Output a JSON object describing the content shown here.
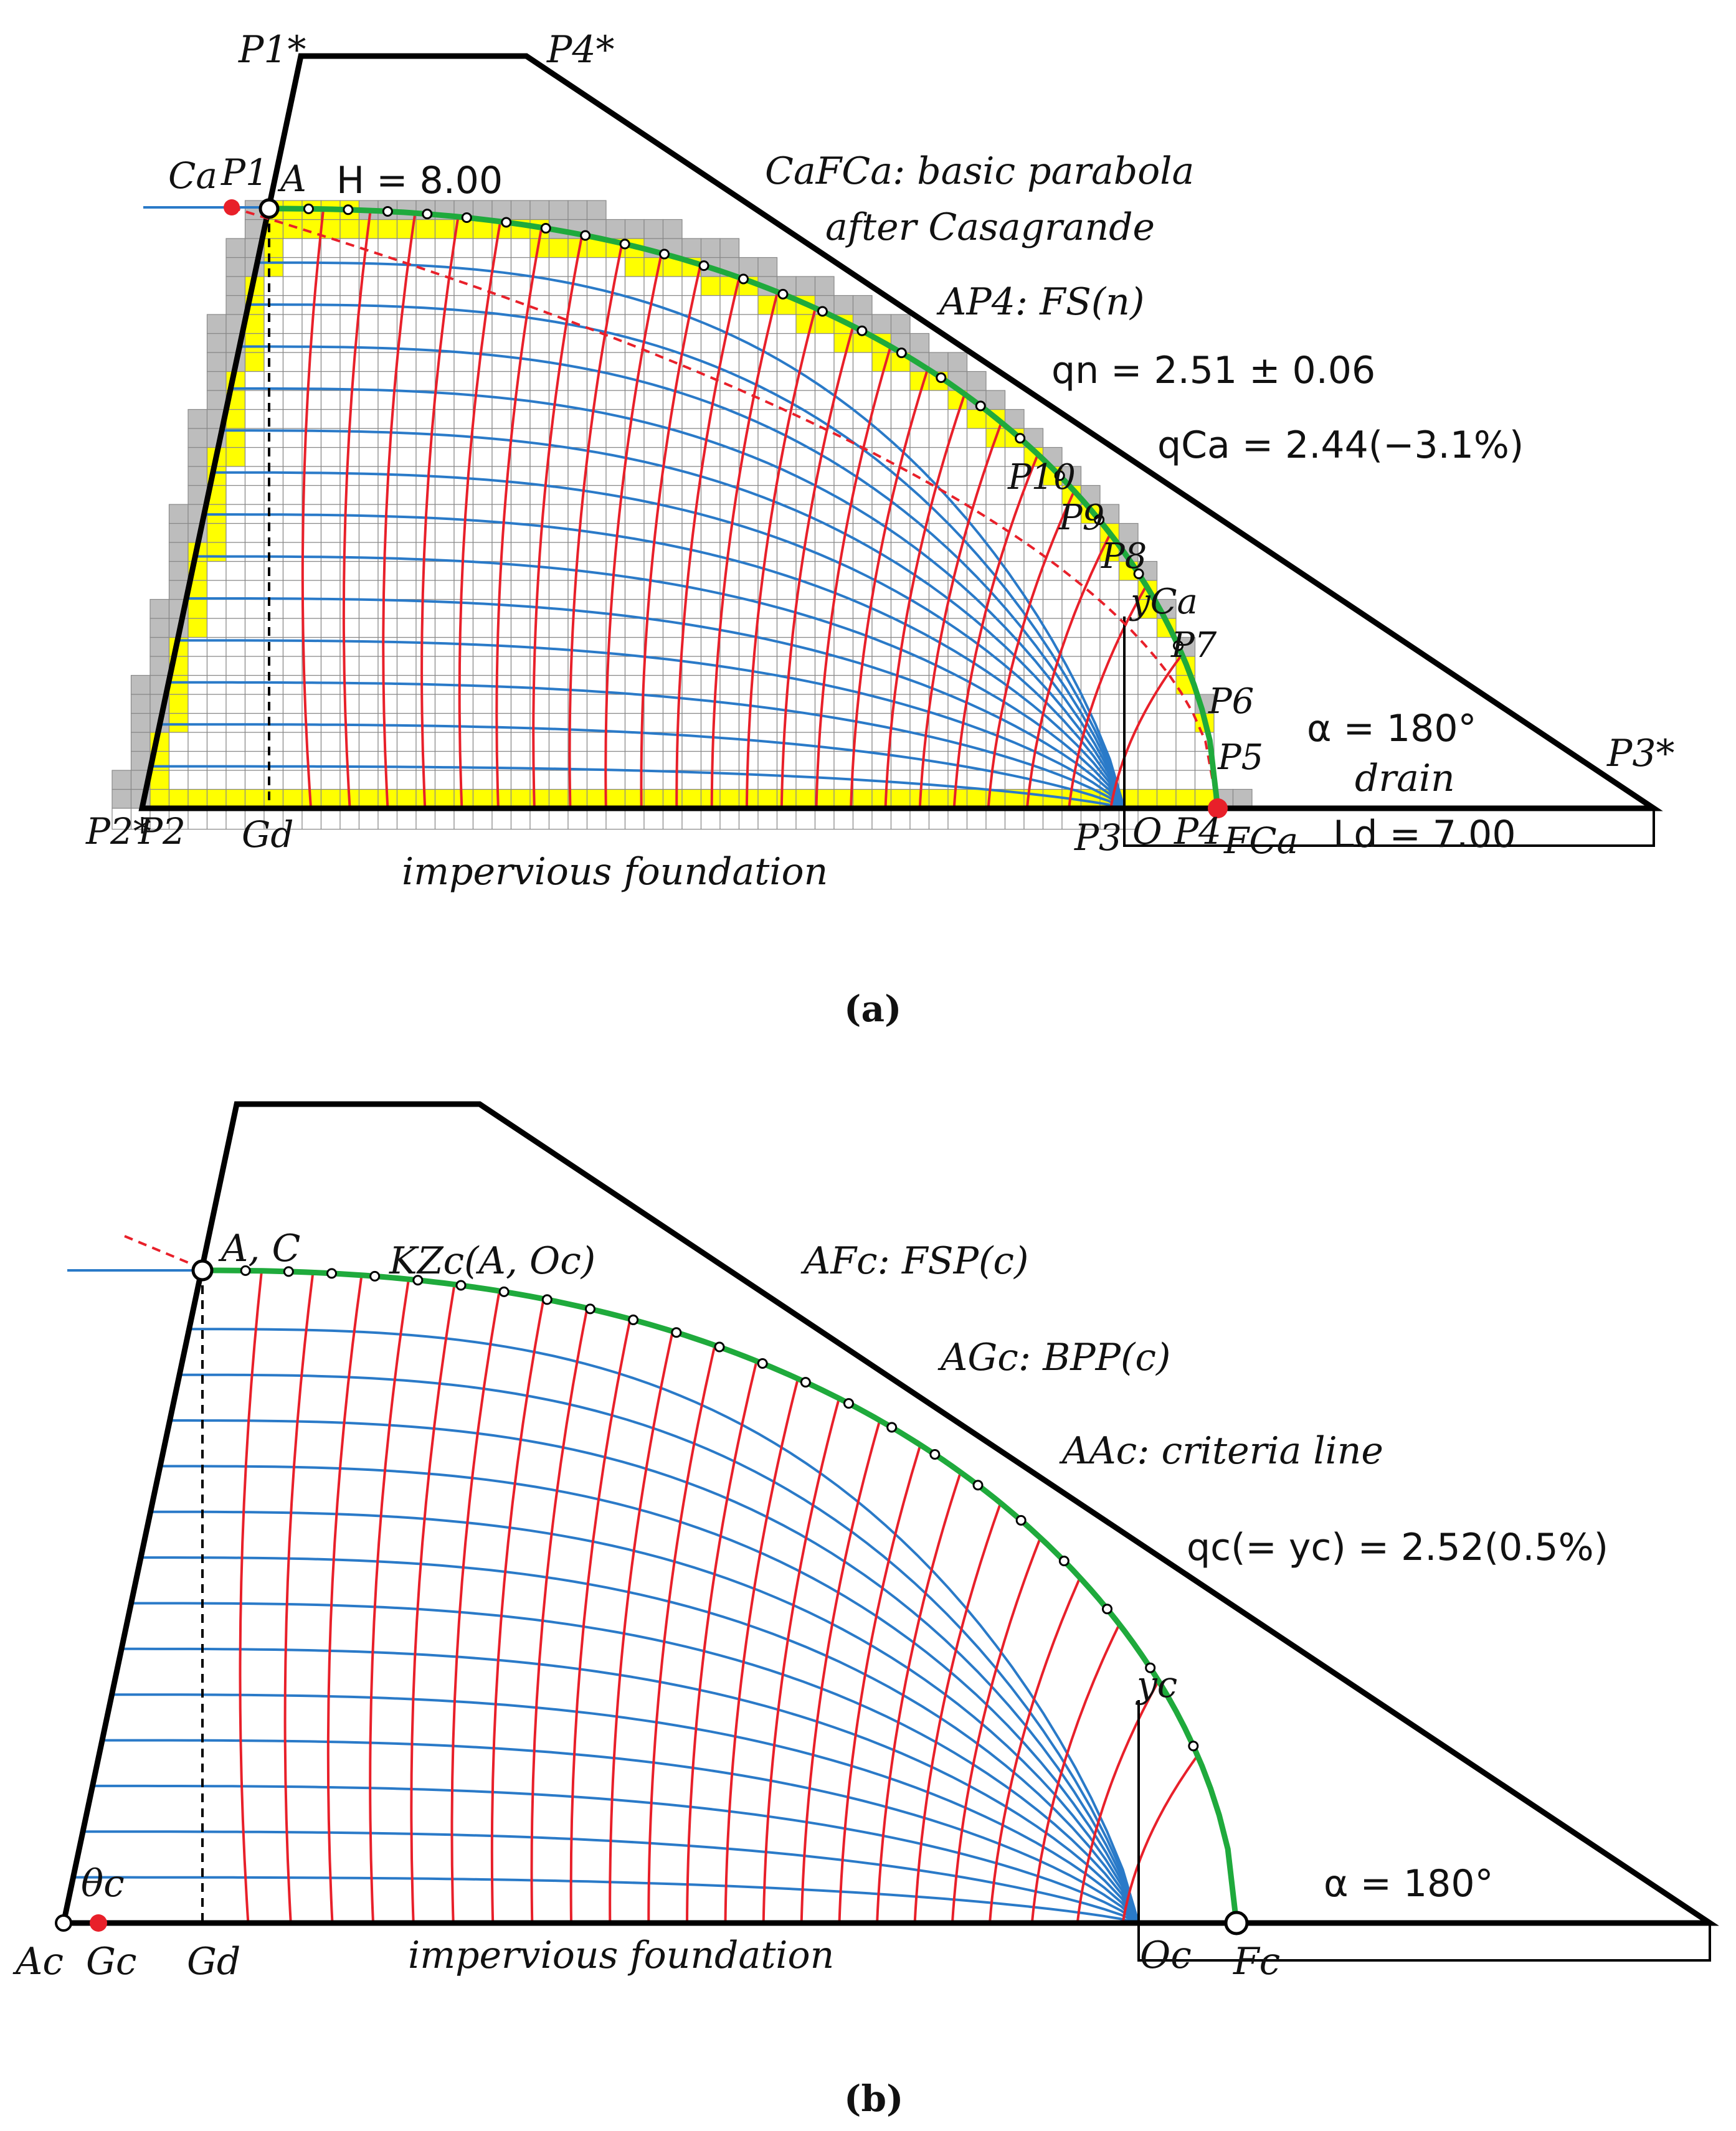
{
  "panel_a": {
    "labels": {
      "P1_star": "P1*",
      "P4_star": "P4*",
      "P3_star": "P3*",
      "P2_star": "P2*",
      "Ca": "Ca",
      "P1": "P1",
      "A": "A",
      "P2": "P2",
      "Gd": "Gd",
      "P3": "P3",
      "O": "O",
      "P4": "P4",
      "FCa": "FCa",
      "P5": "P5",
      "P6": "P6",
      "P7": "P7",
      "P8": "P8",
      "P9": "P9",
      "P10": "P10",
      "yCa": "yCa"
    },
    "notes": {
      "H": "H = 8.00",
      "parabola": "CaFCa: basic parabola",
      "casagrande": "after Casagrande",
      "fsn": "AP4: FS(n)",
      "qn": "qn = 2.51 ± 0.06",
      "qca": "qCa = 2.44(−3.1%)",
      "alpha": "α = 180°",
      "drain": "drain",
      "Ld": "Ld = 7.00",
      "foundation": "impervious foundation"
    },
    "caption": "(a)"
  },
  "panel_b": {
    "labels": {
      "AC": "A, C",
      "Ac": "Ac",
      "Gc": "Gc",
      "Gd": "Gd",
      "Oc": "Oc",
      "Fc": "Fc",
      "yc": "yc",
      "theta": "θc"
    },
    "notes": {
      "kzc": "KZc(A, Oc)",
      "fsp": "AFc: FSP(c)",
      "bpp": "AGc: BPP(c)",
      "criteria": "AAc: criteria line",
      "qc": "qc(= yc) = 2.52(0.5%)",
      "alpha": "α = 180°",
      "foundation": "impervious foundation"
    },
    "caption": "(b)"
  },
  "colors": {
    "dam": "#000000",
    "free_surface": "#1faa3c",
    "flow_lines": "#2a7ac8",
    "equipotential": "#e8202a",
    "grid_fill": "#ffff00",
    "grid_gray": "#bdbdbd",
    "point": "#e8202a"
  }
}
